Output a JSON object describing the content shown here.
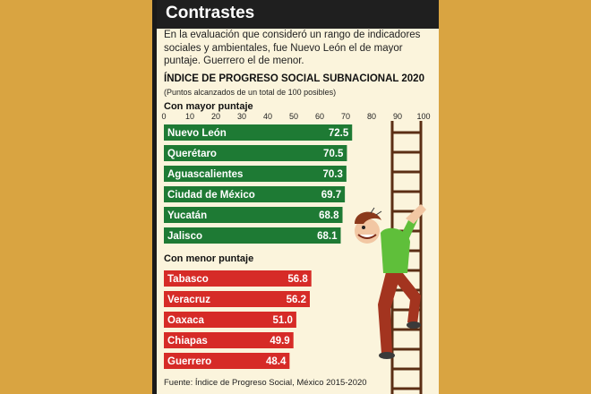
{
  "header": {
    "title": "Contrastes"
  },
  "intro": "En la evaluación que consideró un rango de indicadores sociales y ambientales, fue Nuevo León el de mayor puntaje. Guerrero el de menor.",
  "colors": {
    "top": "#1e7a34",
    "bottom": "#d62b27",
    "bar_text": "#ffffff",
    "page": "#d9a441",
    "card": "#fbf4dc"
  },
  "chart_data": {
    "type": "bar",
    "orientation": "horizontal",
    "title": "ÍNDICE DE PROGRESO SOCIAL SUBNACIONAL 2020",
    "subtitle": "(Puntos alcanzados de un total de 100 posibles)",
    "x_ticks": [
      "0",
      "10",
      "20",
      "30",
      "40",
      "50",
      "60",
      "70",
      "80",
      "90",
      "100"
    ],
    "xlim": [
      0,
      100
    ],
    "groups": [
      {
        "label": "Con mayor puntaje",
        "categories": [
          "Nuevo León",
          "Querétaro",
          "Aguascalientes",
          "Ciudad de México",
          "Yucatán",
          "Jalisco"
        ],
        "values": [
          72.5,
          70.5,
          70.3,
          69.7,
          68.8,
          68.1
        ],
        "value_labels": [
          "72.5",
          "70.5",
          "70.3",
          "69.7",
          "68.8",
          "68.1"
        ]
      },
      {
        "label": "Con menor puntaje",
        "categories": [
          "Tabasco",
          "Veracruz",
          "Oaxaca",
          "Chiapas",
          "Guerrero"
        ],
        "values": [
          56.8,
          56.2,
          51.0,
          49.9,
          48.4
        ],
        "value_labels": [
          "56.8",
          "56.2",
          "51.0",
          "49.9",
          "48.4"
        ]
      }
    ],
    "source": "Fuente: Índice de Progreso Social, México 2015-2020"
  }
}
